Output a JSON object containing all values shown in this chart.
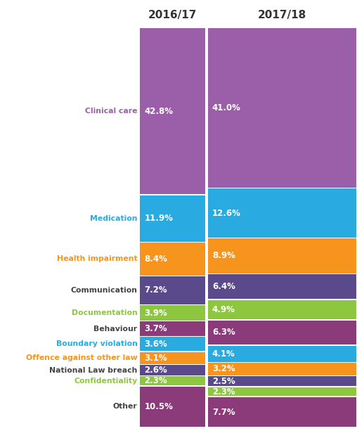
{
  "categories": [
    "Clinical care",
    "Medication",
    "Health impairment",
    "Communication",
    "Documentation",
    "Behaviour",
    "Boundary violation",
    "Offence against other law",
    "National Law breach",
    "Confidentiality",
    "Other"
  ],
  "values_2016": [
    42.8,
    11.9,
    8.4,
    7.2,
    3.9,
    3.7,
    3.6,
    3.1,
    2.6,
    2.3,
    10.5
  ],
  "values_2017": [
    41.0,
    12.6,
    8.9,
    6.4,
    4.9,
    6.3,
    4.1,
    3.2,
    2.5,
    2.3,
    7.7
  ],
  "bar_colors": [
    "#9B5EA8",
    "#29ABE2",
    "#F7941D",
    "#5B4A8B",
    "#8DC63F",
    "#8B3A7A",
    "#29ABE2",
    "#F7941D",
    "#5B4A8B",
    "#8DC63F",
    "#8B3A7A"
  ],
  "label_colors": [
    "#9B5EA8",
    "#29ABE2",
    "#F7941D",
    "#444444",
    "#8DC63F",
    "#444444",
    "#29ABE2",
    "#F7941D",
    "#444444",
    "#8DC63F",
    "#444444"
  ],
  "header_2016": "2016/17",
  "header_2017": "2017/18",
  "bg_color": "#FFFFFF",
  "label_fontsize": 7.8,
  "pct_fontsize": 8.5,
  "header_fontsize": 11
}
